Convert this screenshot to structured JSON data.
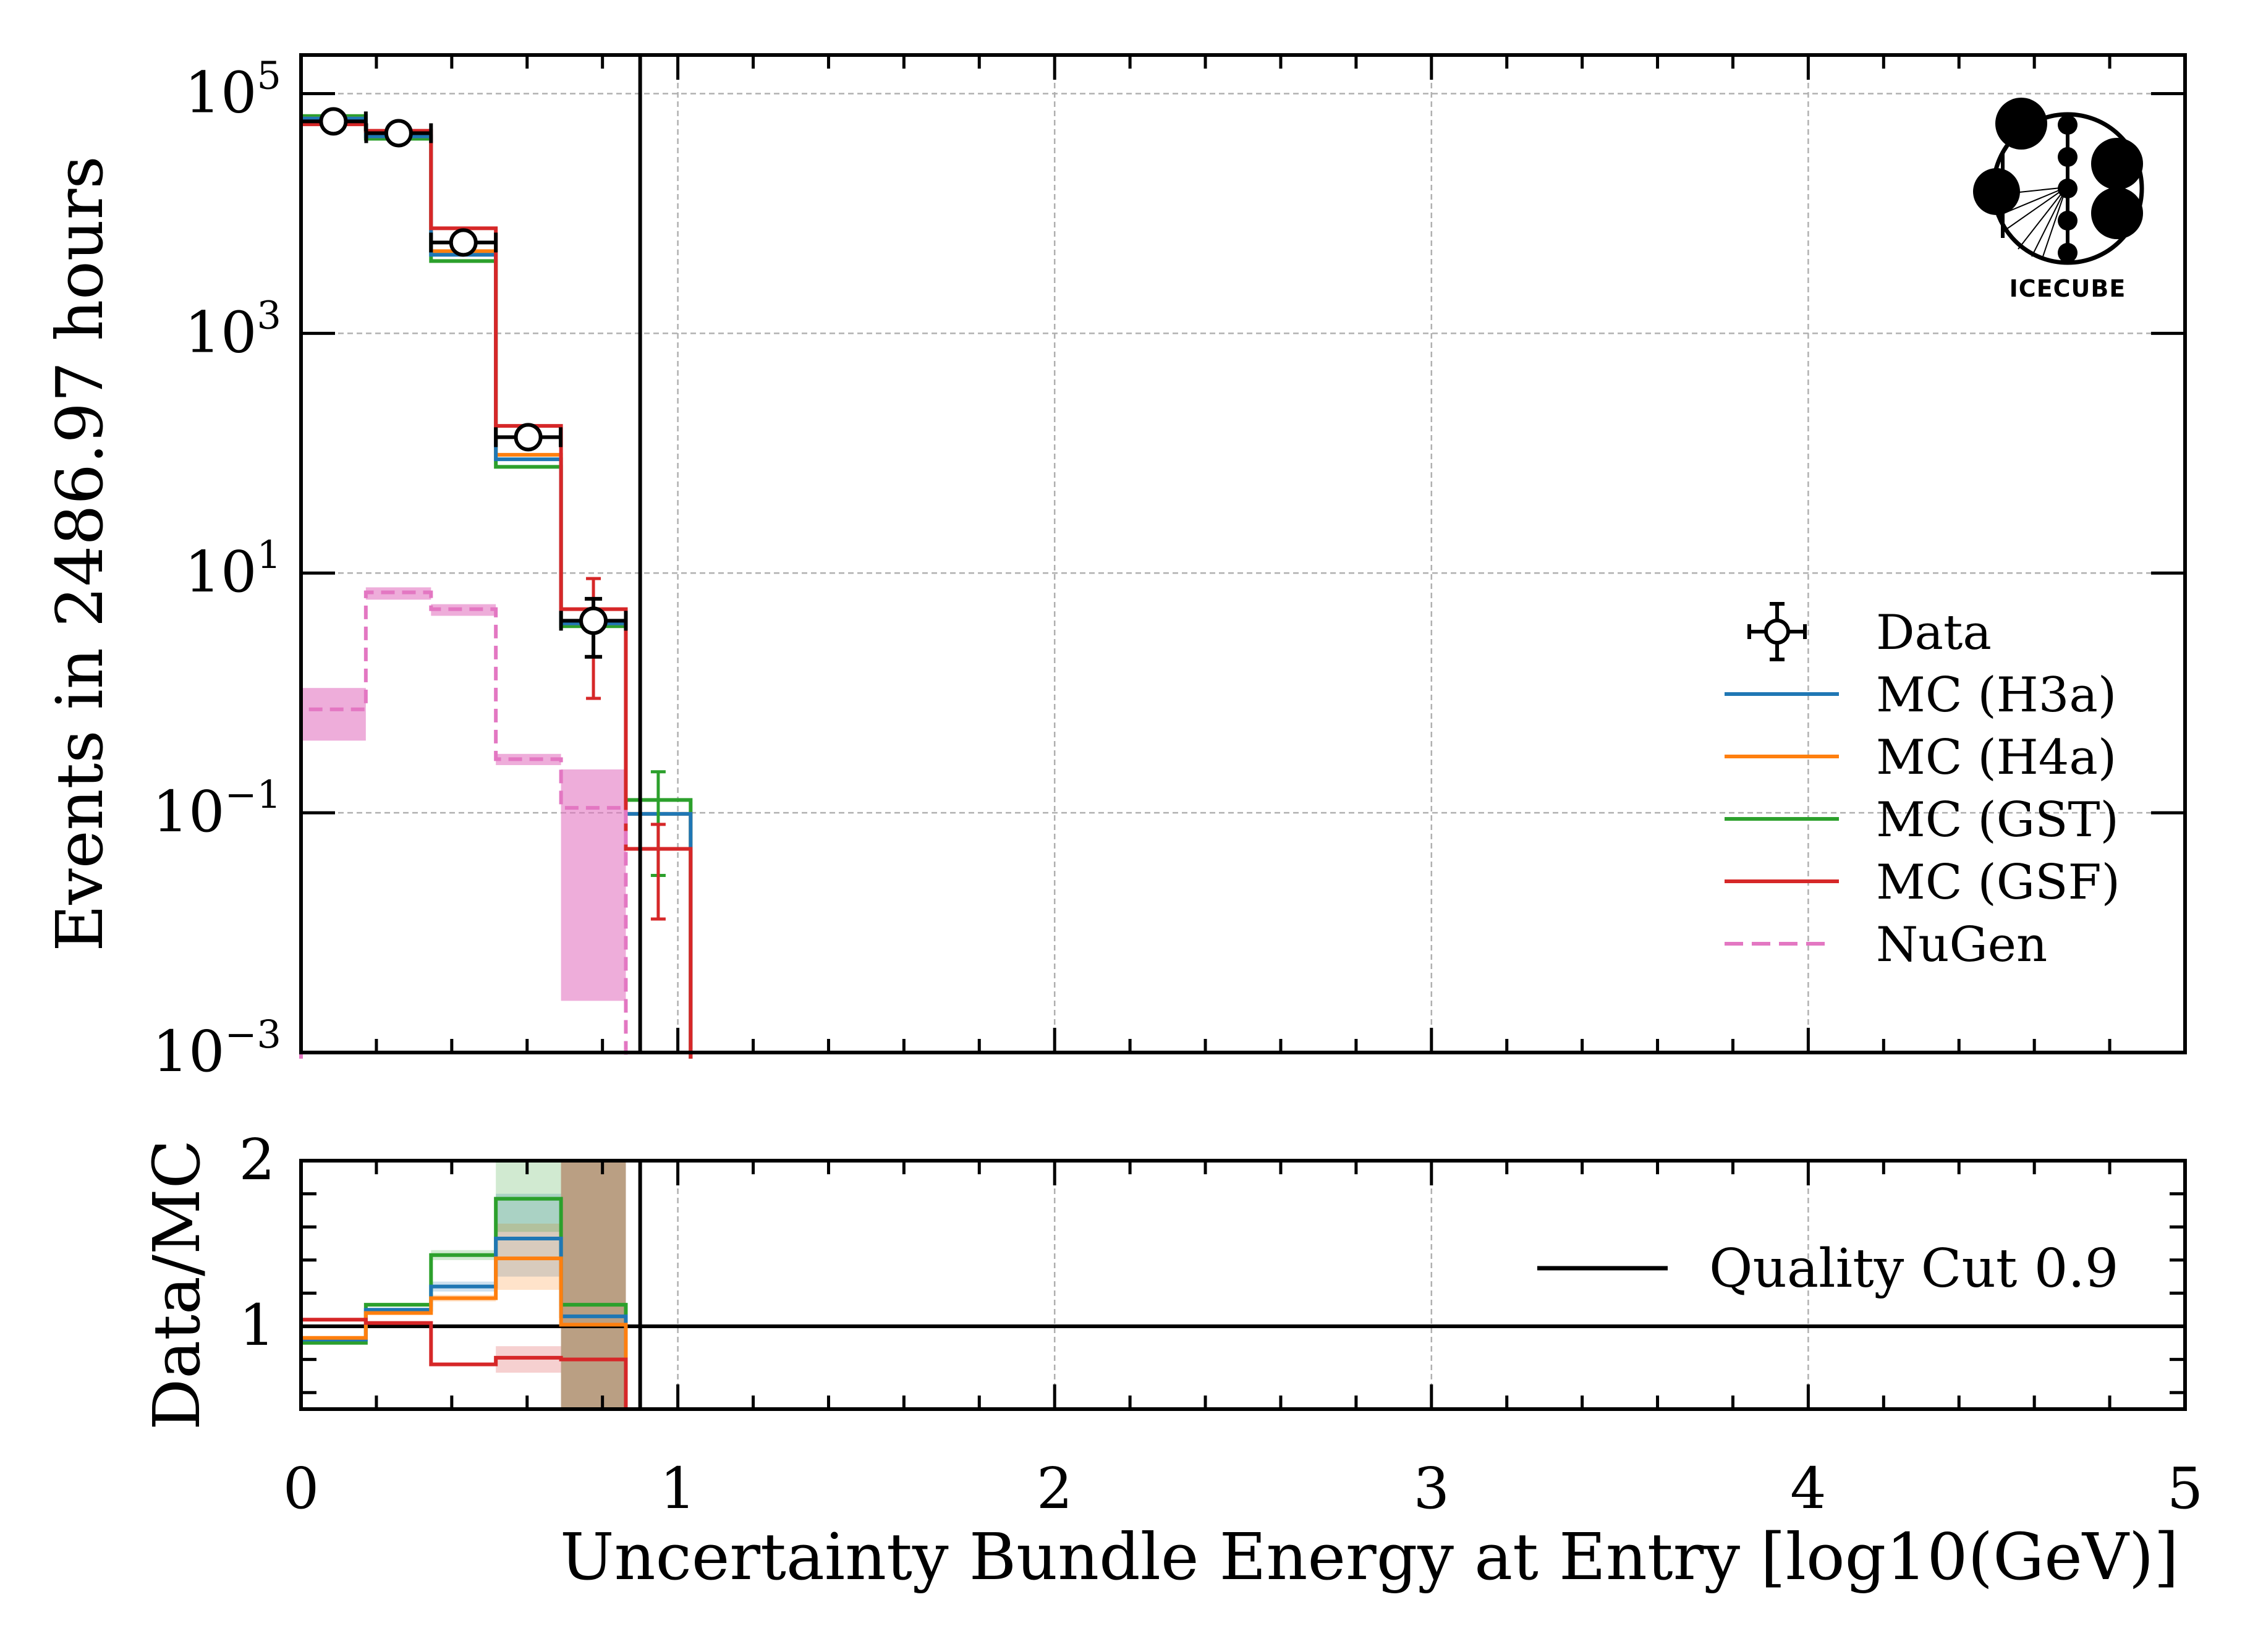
{
  "chart_data": [
    {
      "panel": "main",
      "type": "line",
      "style": "step-histogram",
      "xlabel": "",
      "ylabel": "Events in 2486.97 hours",
      "xlim": [
        0,
        5
      ],
      "ylim": [
        0.001,
        210000
      ],
      "yscale": "log",
      "grid": true,
      "legend_position": "center-right",
      "x_tick_labels": [
        "0",
        "1",
        "2",
        "3",
        "4",
        "5"
      ],
      "y_tick_labels": [
        {
          "base": "10",
          "exp": "5",
          "value": 100000
        },
        {
          "base": "10",
          "exp": "3",
          "value": 1000
        },
        {
          "base": "10",
          "exp": "1",
          "value": 10
        },
        {
          "base": "10",
          "exp": "−1",
          "value": 0.1
        },
        {
          "base": "10",
          "exp": "−3",
          "value": 0.001
        }
      ],
      "bin_edges": [
        0,
        0.172,
        0.345,
        0.517,
        0.69,
        0.862,
        1.034
      ],
      "series": [
        {
          "name": "MC (H3a)",
          "color": "#1f77b4",
          "style": "solid",
          "values": [
            62000,
            44000,
            4520,
            89,
            3.8,
            0.098
          ]
        },
        {
          "name": "MC (H4a)",
          "color": "#ff7f0e",
          "style": "solid",
          "values": [
            62000,
            44000,
            4850,
            97,
            3.8,
            0.098
          ]
        },
        {
          "name": "MC (GST)",
          "color": "#2ca02c",
          "style": "solid",
          "values": [
            65000,
            42000,
            4010,
            77,
            3.6,
            0.128
          ]
        },
        {
          "name": "MC (GSF)",
          "color": "#d62728",
          "style": "solid",
          "values": [
            55500,
            49000,
            7520,
            169,
            5.0,
            0.05
          ]
        },
        {
          "name": "NuGen",
          "color": "#e377c2",
          "style": "dashed",
          "values": [
            0.73,
            6.9,
            5.0,
            0.28,
            0.11,
            null
          ],
          "band_low": [
            0.4,
            6.0,
            4.4,
            0.25,
            0.0027,
            null
          ],
          "band_high": [
            1.1,
            7.6,
            5.5,
            0.31,
            0.23,
            null
          ]
        }
      ],
      "data_points": {
        "name": "Data",
        "x": [
          0.086,
          0.259,
          0.431,
          0.603,
          0.776
        ],
        "y": [
          58700,
          46800,
          5730,
          136,
          4.0
        ],
        "yerr_low": [
          58460,
          46580,
          5650,
          124,
          2.0
        ],
        "yerr_high": [
          58940,
          47020,
          5810,
          148,
          6.1
        ],
        "xerr": 0.086
      },
      "mc_errorbars": [
        {
          "x": 0.776,
          "series": "MC (GSF)",
          "low": 0.9,
          "high": 9.0
        },
        {
          "x": 0.948,
          "series": "MC (GST)",
          "low": 0.03,
          "high": 0.22
        },
        {
          "x": 0.948,
          "series": "MC (GSF)",
          "low": 0.013,
          "high": 0.08
        }
      ],
      "annotations": [
        {
          "type": "vline",
          "x": 0.9,
          "label": "Quality Cut 0.9",
          "color": "#000000"
        },
        {
          "type": "logo",
          "label": "IceCube",
          "position": "top-right"
        }
      ]
    },
    {
      "panel": "ratio",
      "type": "line",
      "style": "step-histogram",
      "xlabel": "Uncertainty Bundle Energy at Entry [log10(GeV)]",
      "ylabel": "Data/MC",
      "xlim": [
        0,
        5
      ],
      "ylim": [
        0.5,
        2.0
      ],
      "grid": true,
      "legend_position": "center-right",
      "x_tick_labels": [
        "0",
        "1",
        "2",
        "3",
        "4",
        "5"
      ],
      "y_tick_labels": [
        "2",
        "1"
      ],
      "bin_edges": [
        0,
        0.172,
        0.345,
        0.517,
        0.69,
        0.862
      ],
      "series": [
        {
          "name": "Data/MC (H3a)",
          "color": "#1f77b4",
          "values": [
            0.92,
            1.1,
            1.24,
            1.53,
            1.06
          ],
          "band_low": [
            0.91,
            1.09,
            1.21,
            1.3,
            0.5
          ],
          "band_high": [
            0.93,
            1.11,
            1.27,
            1.8,
            2.0
          ]
        },
        {
          "name": "Data/MC (H4a)",
          "color": "#ff7f0e",
          "values": [
            0.93,
            1.08,
            1.17,
            1.41,
            1.01
          ],
          "band_low": [
            0.92,
            1.07,
            1.15,
            1.22,
            0.5
          ],
          "band_high": [
            0.94,
            1.09,
            1.19,
            1.62,
            2.0
          ]
        },
        {
          "name": "Data/MC (GST)",
          "color": "#2ca02c",
          "values": [
            0.9,
            1.13,
            1.43,
            1.77,
            1.13
          ],
          "band_low": [
            0.89,
            1.12,
            1.4,
            1.57,
            0.5
          ],
          "band_high": [
            0.91,
            1.14,
            1.46,
            2.0,
            2.0
          ]
        },
        {
          "name": "Data/MC (GSF)",
          "color": "#d62728",
          "values": [
            1.04,
            1.02,
            0.77,
            0.81,
            0.8
          ],
          "band_low": [
            1.03,
            1.01,
            0.76,
            0.72,
            0.5
          ],
          "band_high": [
            1.05,
            1.03,
            0.78,
            0.88,
            2.0
          ]
        }
      ],
      "reference_line": 1.0,
      "legend": [
        {
          "label": "Quality Cut 0.9",
          "color": "#000000"
        }
      ]
    }
  ],
  "legend": [
    {
      "label": "Data",
      "kind": "errorbar-marker",
      "color": "#000000"
    },
    {
      "label": "MC (H3a)",
      "kind": "line",
      "color": "#1f77b4"
    },
    {
      "label": "MC (H4a)",
      "kind": "line",
      "color": "#ff7f0e"
    },
    {
      "label": "MC (GST)",
      "kind": "line",
      "color": "#2ca02c"
    },
    {
      "label": "MC (GSF)",
      "kind": "line",
      "color": "#d62728"
    },
    {
      "label": "NuGen",
      "kind": "dashed",
      "color": "#e377c2"
    }
  ],
  "logo": {
    "text": "IceCube"
  }
}
